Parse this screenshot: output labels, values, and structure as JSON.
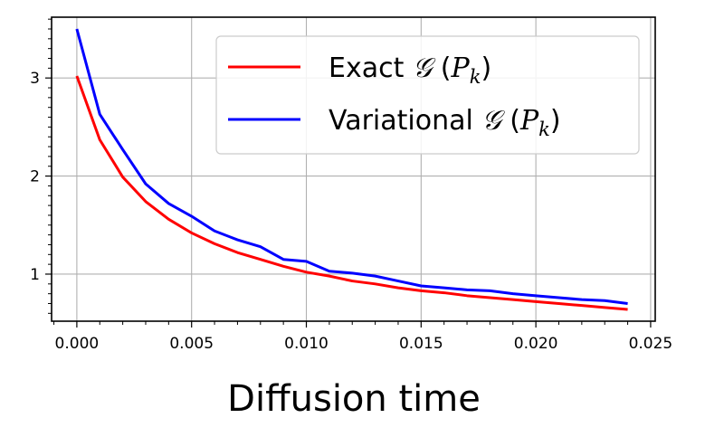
{
  "chart_data": {
    "type": "line",
    "xlabel": "Diffusion time",
    "ylabel": "",
    "xlim": [
      -0.0011,
      0.0252
    ],
    "ylim": [
      0.52,
      3.62
    ],
    "x_ticks": [
      0.0,
      0.005,
      0.01,
      0.015,
      0.02,
      0.025
    ],
    "x_tick_labels": [
      "0.000",
      "0.005",
      "0.010",
      "0.015",
      "0.020",
      "0.025"
    ],
    "y_ticks": [
      1,
      2,
      3
    ],
    "y_tick_labels": [
      "1",
      "2",
      "3"
    ],
    "grid": true,
    "legend_position": "top-right",
    "x": [
      0.0,
      0.001,
      0.002,
      0.003,
      0.004,
      0.005,
      0.006,
      0.007,
      0.008,
      0.009,
      0.01,
      0.011,
      0.012,
      0.013,
      0.014,
      0.015,
      0.016,
      0.017,
      0.018,
      0.019,
      0.02,
      0.021,
      0.022,
      0.023,
      0.024
    ],
    "series": [
      {
        "name": "Exact 𝒢 (P_k)",
        "legend_main": "Exact ",
        "color": "#ff0000",
        "values": [
          3.02,
          2.37,
          1.99,
          1.74,
          1.56,
          1.42,
          1.31,
          1.22,
          1.15,
          1.08,
          1.02,
          0.98,
          0.93,
          0.9,
          0.86,
          0.83,
          0.81,
          0.78,
          0.76,
          0.74,
          0.72,
          0.7,
          0.68,
          0.66,
          0.64
        ]
      },
      {
        "name": "Variational 𝒢 (P_k)",
        "legend_main": "Variational ",
        "color": "#0000ff",
        "values": [
          3.5,
          2.63,
          2.27,
          1.92,
          1.72,
          1.59,
          1.44,
          1.35,
          1.28,
          1.15,
          1.13,
          1.03,
          1.01,
          0.98,
          0.93,
          0.88,
          0.86,
          0.84,
          0.83,
          0.8,
          0.78,
          0.76,
          0.74,
          0.73,
          0.7
        ]
      }
    ],
    "legend_symbol": "𝒢",
    "legend_paren_open": " (",
    "legend_P": "P",
    "legend_sub": "k",
    "legend_paren_close": ")"
  }
}
